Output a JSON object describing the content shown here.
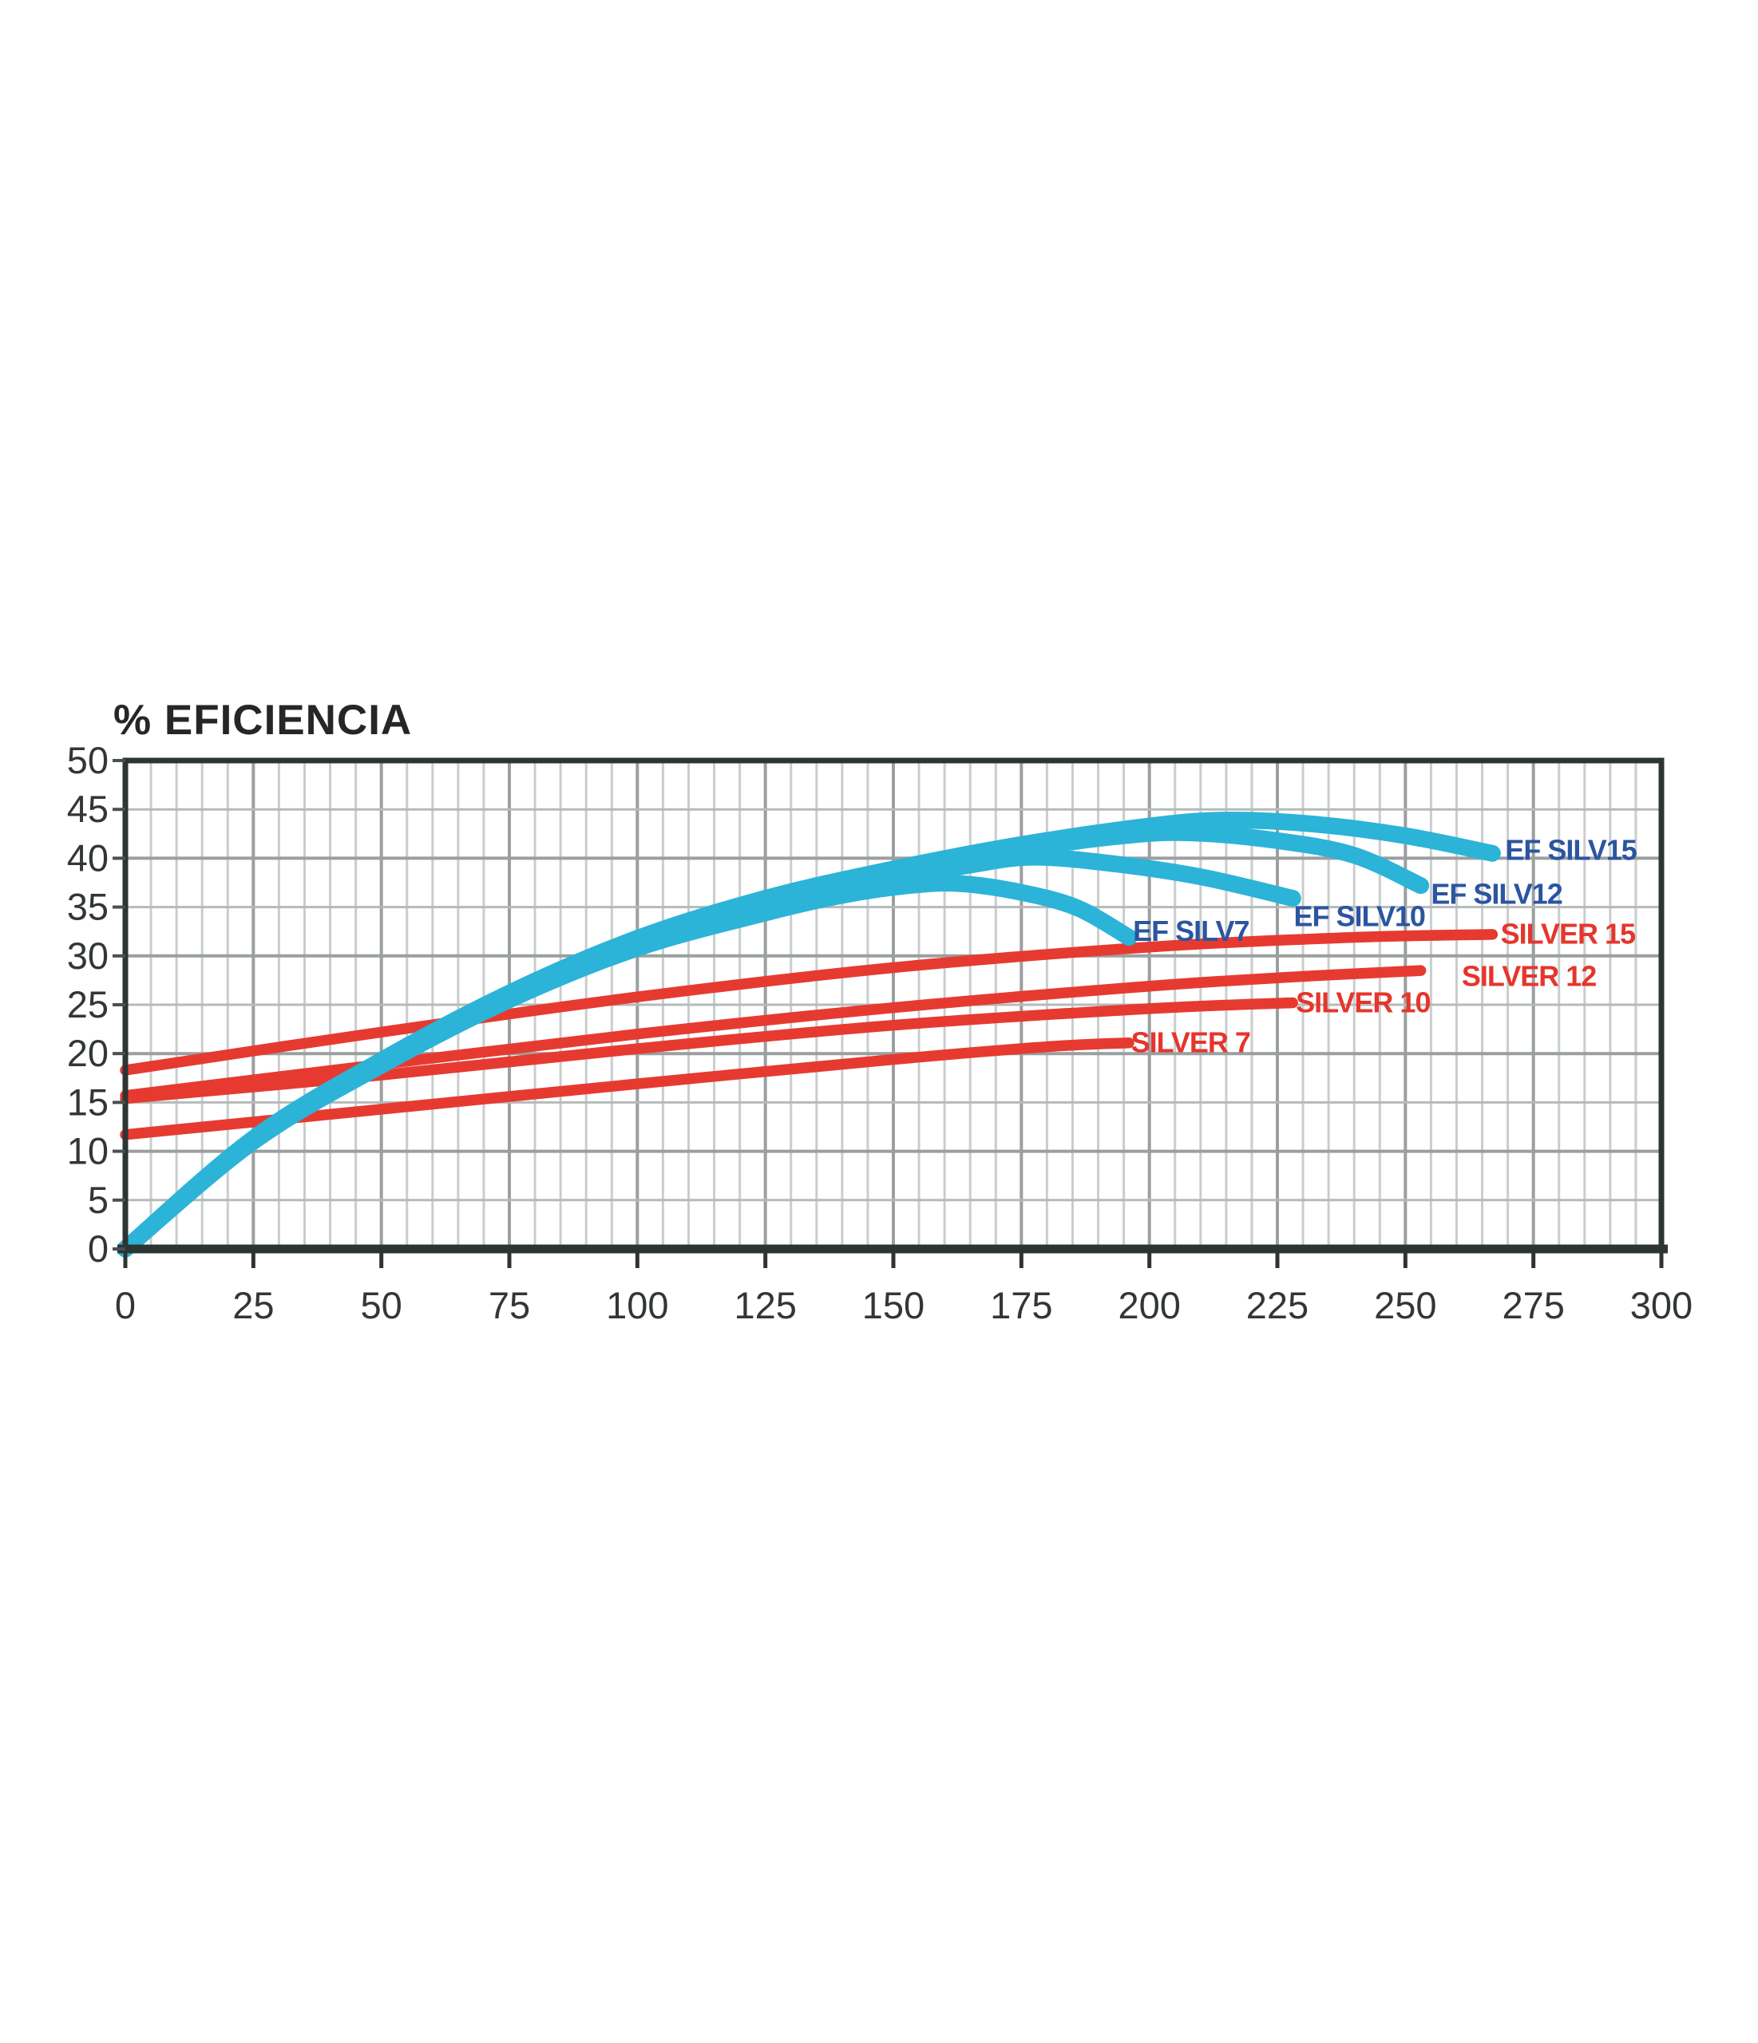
{
  "page": {
    "background": "#ffffff"
  },
  "colors": {
    "background": "#ffffff",
    "plot_border": "#2d3434",
    "grid_minor_v": "#cacdcd",
    "grid_major_v": "#9b9f9f",
    "grid_minor_h": "#b6baba",
    "grid_major_h": "#9b9f9f",
    "tick_text": "#333638",
    "title_text": "#262626",
    "blue_curve": "#2cb3d8",
    "blue_label": "#2b55a0",
    "red_curve": "#e63a31",
    "red_label": "#e6352c"
  },
  "chart_data": {
    "type": "line",
    "title": "% EFICIENCIA",
    "xlabel": "",
    "ylabel": "% EFICIENCIA",
    "xlim": [
      0,
      300
    ],
    "ylim": [
      0,
      50
    ],
    "x_ticks": [
      0,
      25,
      50,
      75,
      100,
      125,
      150,
      175,
      200,
      225,
      250,
      275,
      300
    ],
    "y_ticks": [
      0,
      5,
      10,
      15,
      20,
      25,
      30,
      35,
      40,
      45,
      50
    ],
    "x_minor_step": 5,
    "y_minor_step": 5,
    "x_major_step": 25,
    "y_major_step": 10,
    "grid": true,
    "legend_position": "inline-labels",
    "series": [
      {
        "name": "EF SILV15",
        "group": "blue",
        "color": "#2cb3d8",
        "label_color": "#2b55a0",
        "stroke_width": 21,
        "label_anchor": [
          269.5,
          40.9
        ],
        "points": [
          [
            0,
            0
          ],
          [
            25,
            11.3
          ],
          [
            50,
            19.3
          ],
          [
            75,
            26.2
          ],
          [
            100,
            31.8
          ],
          [
            125,
            35.9
          ],
          [
            150,
            38.9
          ],
          [
            175,
            41.4
          ],
          [
            200,
            43.3
          ],
          [
            215,
            43.9
          ],
          [
            232,
            43.5
          ],
          [
            250,
            42.3
          ],
          [
            267,
            40.5
          ]
        ]
      },
      {
        "name": "EF SILV12",
        "group": "blue",
        "color": "#2cb3d8",
        "label_color": "#2b55a0",
        "stroke_width": 21,
        "label_anchor": [
          255.0,
          36.4
        ],
        "points": [
          [
            0,
            0
          ],
          [
            25,
            11.2
          ],
          [
            50,
            19.1
          ],
          [
            75,
            26.0
          ],
          [
            100,
            31.5
          ],
          [
            125,
            35.6
          ],
          [
            150,
            38.5
          ],
          [
            175,
            40.9
          ],
          [
            195,
            42.3
          ],
          [
            208,
            42.6
          ],
          [
            225,
            41.8
          ],
          [
            240,
            40.3
          ],
          [
            253,
            37.2
          ]
        ]
      },
      {
        "name": "EF SILV10",
        "group": "blue",
        "color": "#2cb3d8",
        "label_color": "#2b55a0",
        "stroke_width": 21,
        "label_anchor": [
          228.2,
          34.1
        ],
        "points": [
          [
            0,
            0
          ],
          [
            25,
            11.1
          ],
          [
            50,
            19.0
          ],
          [
            75,
            25.8
          ],
          [
            100,
            31.2
          ],
          [
            125,
            35.1
          ],
          [
            150,
            37.9
          ],
          [
            165,
            39.3
          ],
          [
            177,
            40.1
          ],
          [
            192,
            39.5
          ],
          [
            210,
            38.1
          ],
          [
            228,
            35.9
          ]
        ]
      },
      {
        "name": "EF SILV7",
        "group": "blue",
        "color": "#2cb3d8",
        "label_color": "#2b55a0",
        "stroke_width": 21,
        "label_anchor": [
          196.8,
          32.6
        ],
        "points": [
          [
            0,
            0
          ],
          [
            25,
            11.0
          ],
          [
            50,
            18.8
          ],
          [
            75,
            25.5
          ],
          [
            100,
            30.8
          ],
          [
            125,
            34.4
          ],
          [
            140,
            36.2
          ],
          [
            153,
            37.2
          ],
          [
            163,
            37.4
          ],
          [
            175,
            36.5
          ],
          [
            186,
            34.9
          ],
          [
            196,
            31.9
          ]
        ]
      },
      {
        "name": "SILVER 15",
        "group": "red",
        "color": "#e63a31",
        "label_color": "#e6352c",
        "stroke_width": 13.5,
        "label_anchor": [
          268.6,
          32.3
        ],
        "points": [
          [
            0,
            18.3
          ],
          [
            50,
            22.2
          ],
          [
            100,
            25.8
          ],
          [
            150,
            28.8
          ],
          [
            200,
            30.9
          ],
          [
            240,
            31.9
          ],
          [
            267,
            32.2
          ]
        ]
      },
      {
        "name": "SILVER 12",
        "group": "red",
        "color": "#e63a31",
        "label_color": "#e6352c",
        "stroke_width": 13.5,
        "label_anchor": [
          261.0,
          28.0
        ],
        "points": [
          [
            0,
            15.7
          ],
          [
            50,
            18.9
          ],
          [
            100,
            22.0
          ],
          [
            150,
            24.7
          ],
          [
            200,
            26.9
          ],
          [
            230,
            27.9
          ],
          [
            253,
            28.5
          ]
        ]
      },
      {
        "name": "SILVER 10",
        "group": "red",
        "color": "#e63a31",
        "label_color": "#e6352c",
        "stroke_width": 13.5,
        "label_anchor": [
          228.6,
          25.3
        ],
        "points": [
          [
            0,
            15.4
          ],
          [
            50,
            17.8
          ],
          [
            100,
            20.5
          ],
          [
            150,
            22.9
          ],
          [
            200,
            24.6
          ],
          [
            228,
            25.2
          ]
        ]
      },
      {
        "name": "SILVER 7",
        "group": "red",
        "color": "#e63a31",
        "label_color": "#e6352c",
        "stroke_width": 13.5,
        "label_anchor": [
          196.4,
          21.2
        ],
        "points": [
          [
            0,
            11.7
          ],
          [
            50,
            14.3
          ],
          [
            100,
            16.9
          ],
          [
            150,
            19.4
          ],
          [
            180,
            20.7
          ],
          [
            196,
            21.1
          ]
        ]
      }
    ]
  }
}
